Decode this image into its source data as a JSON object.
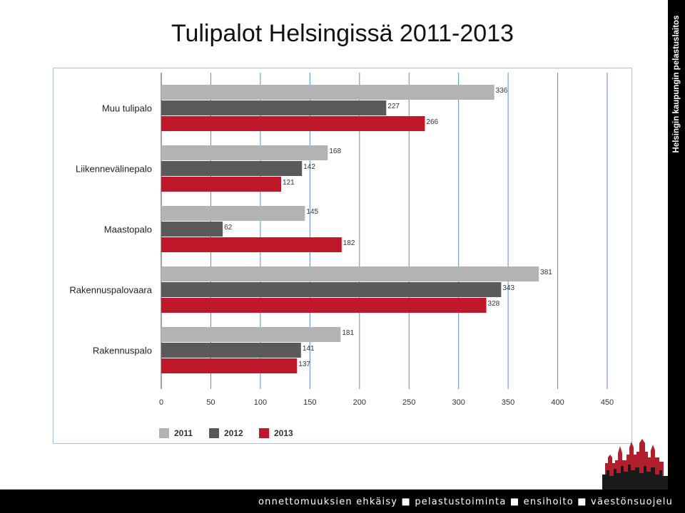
{
  "slide": {
    "title": "Tulipalot Helsingissä 2011-2013",
    "side_text": "Helsingin kaupungin pelastuslaitos",
    "footer": "onnettomuuksien ehkäisy ■ pelastustoiminta ■ ensihoito ■ väestönsuojelu"
  },
  "colors": {
    "s2011": "#b3b3b3",
    "s2012": "#5a5a5a",
    "s2013": "#c0182b",
    "grid": "#5b8ec9",
    "band": "#000000",
    "skyline_red": "#b21f2d"
  },
  "chart_data": {
    "type": "bar",
    "orientation": "horizontal",
    "title": "",
    "xlabel": "",
    "ylabel": "",
    "categories": [
      "Muu tulipalo",
      "Liikennevälinepalo",
      "Maastopalo",
      "Rakennuspalovaara",
      "Rakennuspalo"
    ],
    "series": [
      {
        "name": "2011",
        "values": [
          336,
          168,
          145,
          381,
          181
        ]
      },
      {
        "name": "2012",
        "values": [
          227,
          142,
          62,
          343,
          141
        ]
      },
      {
        "name": "2013",
        "values": [
          266,
          121,
          182,
          328,
          137
        ]
      }
    ],
    "xlim": [
      0,
      450
    ],
    "xticks": [
      0,
      50,
      100,
      150,
      200,
      250,
      300,
      350,
      400,
      450
    ],
    "grid": "vertical",
    "legend": "bottom-left",
    "data_labels": true
  }
}
